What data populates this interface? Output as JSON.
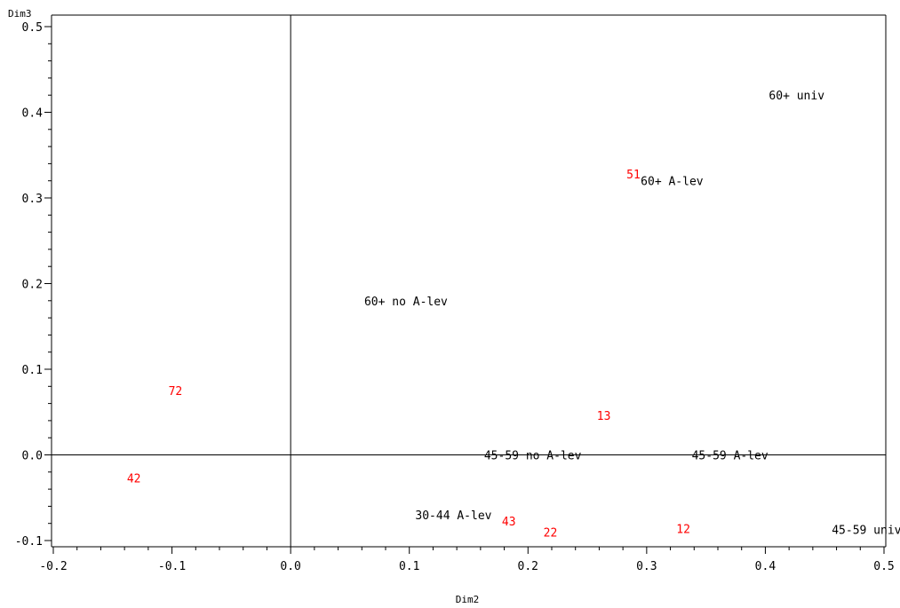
{
  "chart_data": {
    "type": "scatter",
    "xlabel": "Dim2",
    "ylabel": "Dim3",
    "xlim": [
      -0.2,
      0.5
    ],
    "ylim": [
      -0.1,
      0.5
    ],
    "x_ticks": [
      -0.2,
      -0.1,
      0.0,
      0.1,
      0.2,
      0.3,
      0.4,
      0.5
    ],
    "y_ticks": [
      -0.1,
      0.0,
      0.1,
      0.2,
      0.3,
      0.4,
      0.5
    ],
    "x_tick_labels": [
      "-0.2",
      "-0.1",
      "0.0",
      "0.1",
      "0.2",
      "0.3",
      "0.4",
      "0.5"
    ],
    "y_tick_labels": [
      "-0.1",
      "0.0",
      "0.1",
      "0.2",
      "0.3",
      "0.4",
      "0.5"
    ],
    "x_minor_step": 0.02,
    "y_minor_step": 0.02,
    "reference_lines": {
      "x": 0.0,
      "y": 0.0
    },
    "grid": false,
    "colors": {
      "category_labels": "#000000",
      "case_labels": "#ff0000"
    },
    "points": [
      {
        "label": "60+ univ",
        "x": 0.403,
        "y": 0.42,
        "group": "category"
      },
      {
        "label": "60+ A-lev",
        "x": 0.295,
        "y": 0.32,
        "group": "category"
      },
      {
        "label": "60+ no A-lev",
        "x": 0.062,
        "y": 0.18,
        "group": "category"
      },
      {
        "label": "45-59 no A-lev",
        "x": 0.163,
        "y": 0.0,
        "group": "category"
      },
      {
        "label": "45-59 A-lev",
        "x": 0.338,
        "y": 0.0,
        "group": "category"
      },
      {
        "label": "30-44 A-lev",
        "x": 0.105,
        "y": -0.07,
        "group": "category"
      },
      {
        "label": "45-59 univ",
        "x": 0.456,
        "y": -0.087,
        "group": "category"
      },
      {
        "label": "51",
        "x": 0.283,
        "y": 0.328,
        "group": "case"
      },
      {
        "label": "72",
        "x": -0.103,
        "y": 0.075,
        "group": "case"
      },
      {
        "label": "13",
        "x": 0.258,
        "y": 0.046,
        "group": "case"
      },
      {
        "label": "42",
        "x": -0.138,
        "y": -0.027,
        "group": "case"
      },
      {
        "label": "43",
        "x": 0.178,
        "y": -0.077,
        "group": "case"
      },
      {
        "label": "22",
        "x": 0.213,
        "y": -0.09,
        "group": "case"
      },
      {
        "label": "12",
        "x": 0.325,
        "y": -0.086,
        "group": "case"
      }
    ]
  }
}
